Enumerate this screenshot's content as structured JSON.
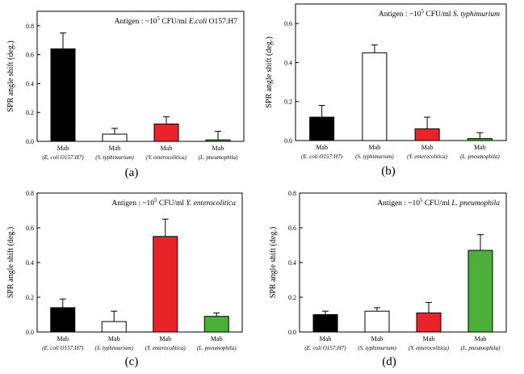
{
  "chart_data": [
    {
      "type": "bar",
      "panel_label": "(a)",
      "annotation": {
        "prefix": "Antigen : ~10",
        "exponent": "5",
        "suffix": " CFU/ml ",
        "organism": "E.coli",
        "strain": " O157:H7"
      },
      "ylabel": "SPR angle shift (deg.)",
      "ylim": [
        0,
        0.9
      ],
      "yticks": [
        "0.0",
        "0.2",
        "0.4",
        "0.6",
        "0.8"
      ],
      "categories": [
        [
          "Mab",
          "(E. coli O157:H7)"
        ],
        [
          "Mab",
          "(S. typhimurium)"
        ],
        [
          "Mab",
          "(Y. enterocolitica)"
        ],
        [
          "Mab",
          "(L. pneumophila)"
        ]
      ],
      "values": [
        0.64,
        0.05,
        0.12,
        0.01
      ],
      "errors": [
        0.11,
        0.04,
        0.05,
        0.06
      ],
      "colors": [
        "#000000",
        "#ffffff",
        "#e8242a",
        "#4caf3a"
      ]
    },
    {
      "type": "bar",
      "panel_label": "(b)",
      "annotation": {
        "prefix": "Antigen : ~10",
        "exponent": "5",
        "suffix": " CFU/ml ",
        "organism": "S. typhimurium",
        "strain": ""
      },
      "ylabel": "SPR angle shift (deg.)",
      "ylim": [
        0,
        0.7
      ],
      "yticks": [
        "0.0",
        "0.2",
        "0.4",
        "0.6"
      ],
      "categories": [
        [
          "Mab",
          "(E. coli O157:H7)"
        ],
        [
          "Mab",
          "(S. typhimurium)"
        ],
        [
          "Mab",
          "(Y. enterocolitica)"
        ],
        [
          "Mab",
          "(L. pneumophila)"
        ]
      ],
      "values": [
        0.12,
        0.45,
        0.06,
        0.01
      ],
      "errors": [
        0.06,
        0.04,
        0.06,
        0.03
      ],
      "colors": [
        "#000000",
        "#ffffff",
        "#e8242a",
        "#4caf3a"
      ]
    },
    {
      "type": "bar",
      "panel_label": "(c)",
      "annotation": {
        "prefix": "Antigen : ~10",
        "exponent": "5",
        "suffix": " CFU/ml ",
        "organism": "Y. enterocolitica",
        "strain": ""
      },
      "ylabel": "SPR angle shift (deg.)",
      "ylim": [
        0,
        0.8
      ],
      "yticks": [
        "0.0",
        "0.2",
        "0.4",
        "0.6",
        "0.8"
      ],
      "categories": [
        [
          "Mab",
          "(E. coli O157:H7)"
        ],
        [
          "Mab",
          "(S. typhimurium)"
        ],
        [
          "Mab",
          "(Y. enterocolitica)"
        ],
        [
          "Mab",
          "(L. pneumophila)"
        ]
      ],
      "values": [
        0.14,
        0.06,
        0.55,
        0.09
      ],
      "errors": [
        0.05,
        0.06,
        0.1,
        0.02
      ],
      "colors": [
        "#000000",
        "#ffffff",
        "#e8242a",
        "#4caf3a"
      ]
    },
    {
      "type": "bar",
      "panel_label": "(d)",
      "annotation": {
        "prefix": "Antigen : ~10",
        "exponent": "5",
        "suffix": " CFU/ml ",
        "organism": "L. pneumophila",
        "strain": ""
      },
      "ylabel": "SPR angle shift (deg.)",
      "ylim": [
        0,
        0.8
      ],
      "yticks": [
        "0.0",
        "0.2",
        "0.4",
        "0.6",
        "0.8"
      ],
      "categories": [
        [
          "Mab",
          "(E. coli O157:H7)"
        ],
        [
          "Mab",
          "(S. typhimurium)"
        ],
        [
          "Mab",
          "(Y. enterocolitica)"
        ],
        [
          "Mab",
          "(L. pneumophila)"
        ]
      ],
      "values": [
        0.1,
        0.12,
        0.11,
        0.47
      ],
      "errors": [
        0.02,
        0.02,
        0.06,
        0.09
      ],
      "colors": [
        "#000000",
        "#ffffff",
        "#e8242a",
        "#4caf3a"
      ]
    }
  ]
}
